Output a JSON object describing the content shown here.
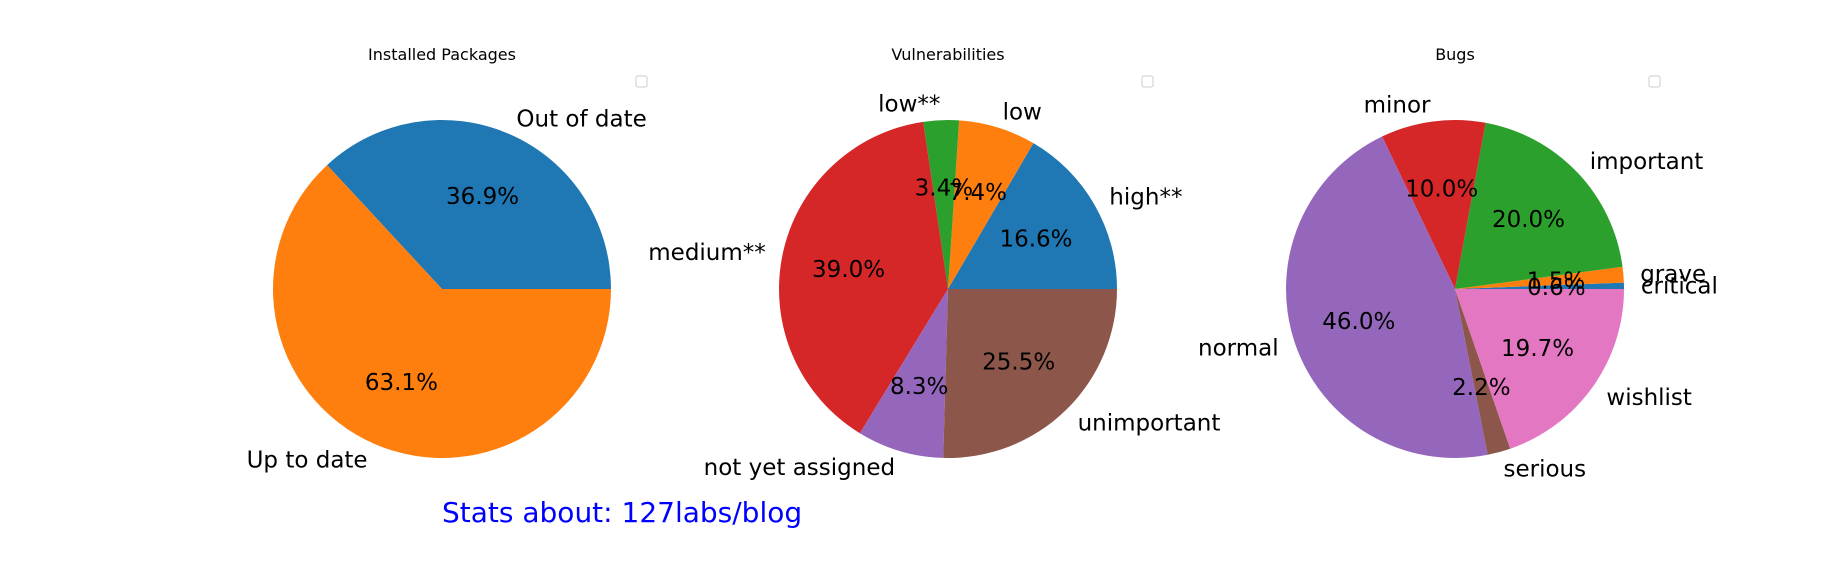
{
  "footer": {
    "text": "Stats about: 127labs/blog",
    "color": "#0000ff"
  },
  "chart_data": [
    {
      "type": "pie",
      "title": "Installed Packages",
      "legend": "top-right",
      "slices": [
        {
          "label": "Out of date",
          "value": 36.9,
          "pct_label": "36.9%",
          "color": "#1f77b4"
        },
        {
          "label": "Up to date",
          "value": 63.1,
          "pct_label": "63.1%",
          "color": "#ff7f0e"
        }
      ]
    },
    {
      "type": "pie",
      "title": "Vulnerabilities",
      "legend": "top-right",
      "slices": [
        {
          "label": "high**",
          "value": 16.6,
          "pct_label": "16.6%",
          "color": "#1f77b4"
        },
        {
          "label": "low",
          "value": 7.4,
          "pct_label": "7.4%",
          "color": "#ff7f0e"
        },
        {
          "label": "low**",
          "value": 3.4,
          "pct_label": "3.4%",
          "color": "#2ca02c"
        },
        {
          "label": "medium**",
          "value": 39.0,
          "pct_label": "39.0%",
          "color": "#d62728"
        },
        {
          "label": "not yet assigned",
          "value": 8.3,
          "pct_label": "8.3%",
          "color": "#9467bd"
        },
        {
          "label": "unimportant",
          "value": 25.5,
          "pct_label": "25.5%",
          "color": "#8c564b"
        }
      ]
    },
    {
      "type": "pie",
      "title": "Bugs",
      "legend": "top-right",
      "slices": [
        {
          "label": "critical",
          "value": 0.6,
          "pct_label": "0.6%",
          "color": "#1f77b4"
        },
        {
          "label": "grave",
          "value": 1.5,
          "pct_label": "1.5%",
          "color": "#ff7f0e"
        },
        {
          "label": "important",
          "value": 20.0,
          "pct_label": "20.0%",
          "color": "#2ca02c"
        },
        {
          "label": "minor",
          "value": 10.0,
          "pct_label": "10.0%",
          "color": "#d62728"
        },
        {
          "label": "normal",
          "value": 46.0,
          "pct_label": "46.0%",
          "color": "#9467bd"
        },
        {
          "label": "serious",
          "value": 2.2,
          "pct_label": "2.2%",
          "color": "#8c564b"
        },
        {
          "label": "wishlist",
          "value": 19.7,
          "pct_label": "19.7%",
          "color": "#e377c2"
        }
      ]
    }
  ]
}
